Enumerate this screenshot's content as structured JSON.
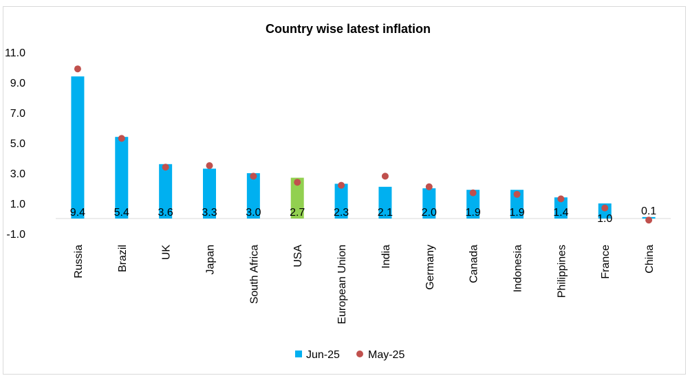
{
  "chart_data": {
    "type": "bar",
    "title": "Country wise latest inflation",
    "categories": [
      "Russia",
      "Brazil",
      "UK",
      "Japan",
      "South Africa",
      "USA",
      "European Union",
      "India",
      "Germany",
      "Canada",
      "Indonesia",
      "Philippines",
      "France",
      "China"
    ],
    "series": [
      {
        "name": "Jun-25",
        "kind": "bar",
        "color": "#00b0f0",
        "values": [
          9.4,
          5.4,
          3.6,
          3.3,
          3.0,
          2.7,
          2.3,
          2.1,
          2.0,
          1.9,
          1.9,
          1.4,
          1.0,
          0.1
        ],
        "labels": [
          "9.4",
          "5.4",
          "3.6",
          "3.3",
          "3.0",
          "2.7",
          "2.3",
          "2.1",
          "2.0",
          "1.9",
          "1.9",
          "1.4",
          "1.0",
          "0.1"
        ]
      },
      {
        "name": "May-25",
        "kind": "marker",
        "color": "#c0504d",
        "values": [
          9.9,
          5.3,
          3.4,
          3.5,
          2.8,
          2.4,
          2.2,
          2.8,
          2.1,
          1.7,
          1.6,
          1.3,
          0.7,
          -0.1
        ]
      }
    ],
    "highlight": {
      "category": "USA",
      "color": "#92d050"
    },
    "yticks": [
      "11.0",
      "9.0",
      "7.0",
      "5.0",
      "3.0",
      "1.0",
      "-1.0"
    ],
    "ylim": [
      -1.0,
      11.0
    ],
    "legend_position": "bottom",
    "grid": false
  }
}
